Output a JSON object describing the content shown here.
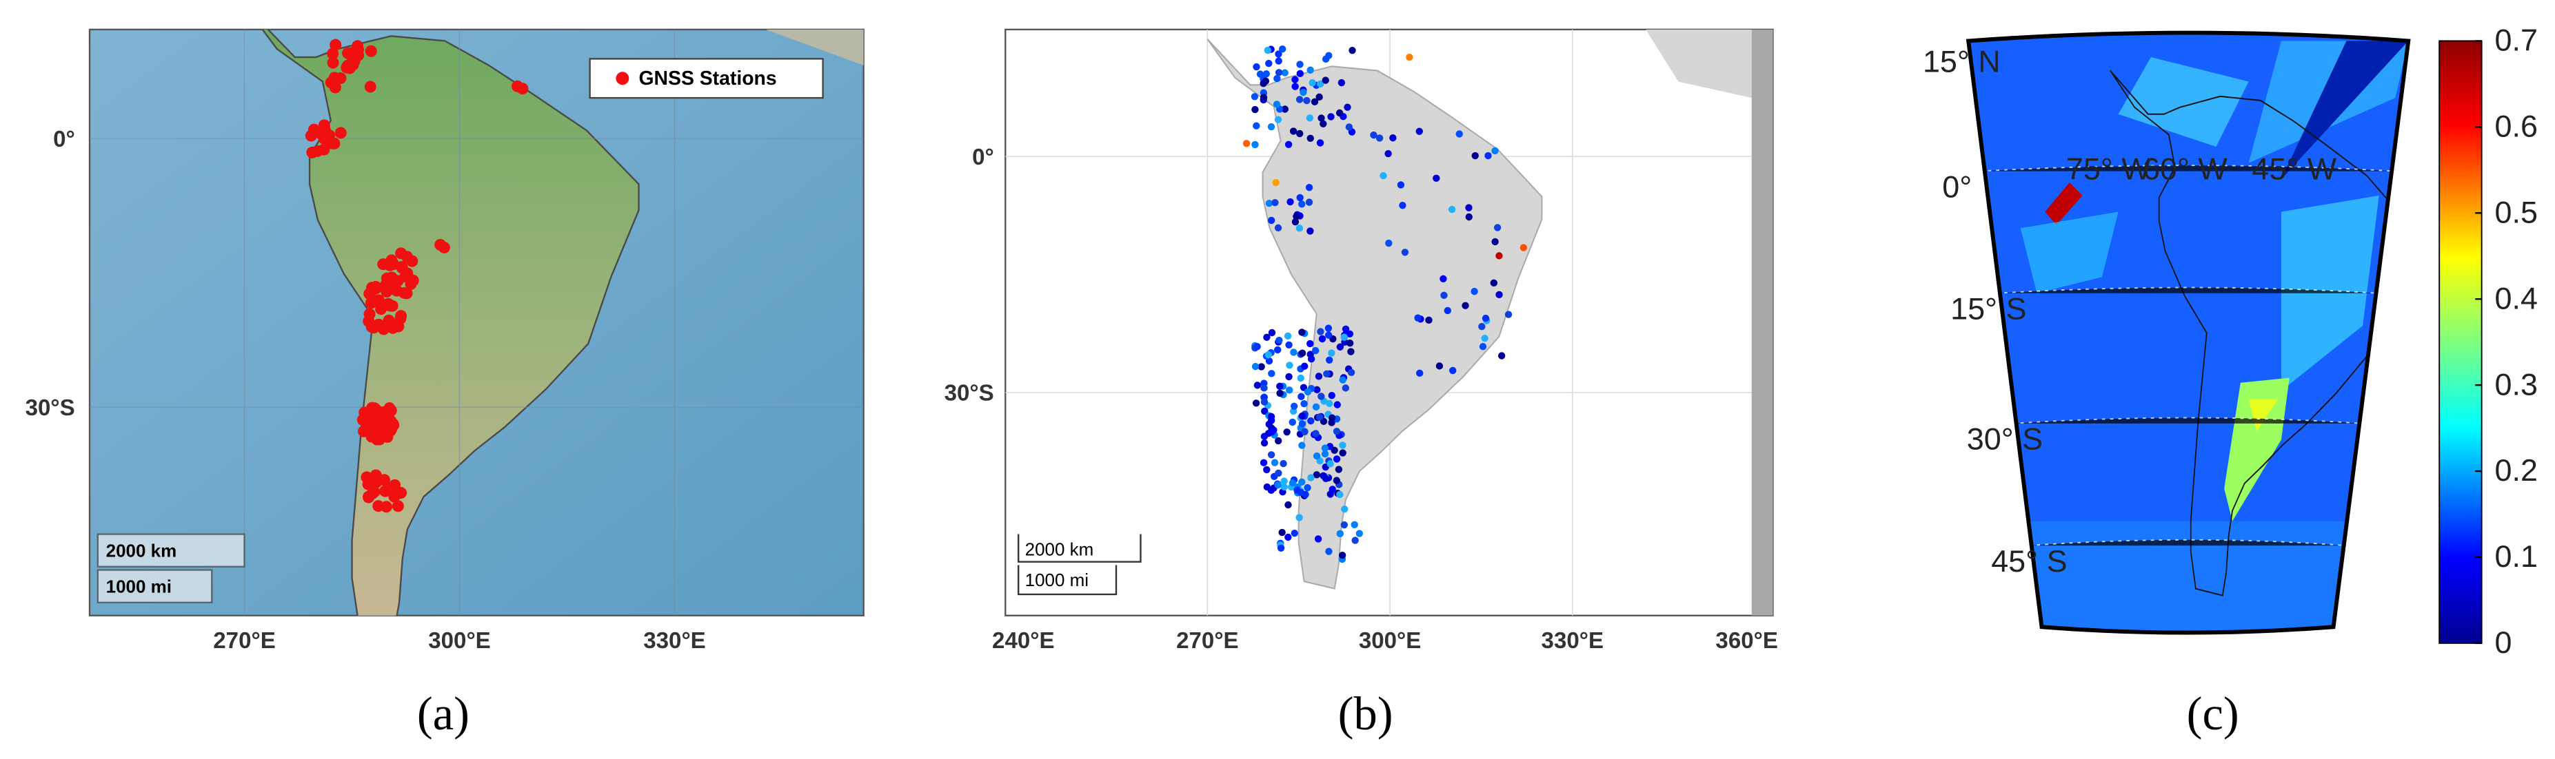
{
  "panels": [
    {
      "label": "(a)",
      "yticks": [
        "0°",
        "30°S"
      ],
      "xticks": [
        "270°E",
        "300°E",
        "330°E"
      ],
      "legend": "GNSS Stations",
      "scalebar": [
        "2000 km",
        "1000 mi"
      ]
    },
    {
      "label": "(b)",
      "yticks": [
        "0°",
        "30°S"
      ],
      "xticks": [
        "240°E",
        "270°E",
        "300°E",
        "330°E",
        "360°E"
      ],
      "scalebar": [
        "2000 km",
        "1000 mi"
      ]
    },
    {
      "label": "(c)",
      "lat_labels": [
        "15° N",
        "0°",
        "15° S",
        "30° S",
        "45° S"
      ],
      "lon_labels": [
        "75° W",
        "60° W",
        "45° W"
      ],
      "colorbar": {
        "lim": [
          0,
          0.7
        ],
        "ticks": [
          0,
          0.1,
          0.2,
          0.3,
          0.4,
          0.5,
          0.6,
          0.7
        ]
      }
    }
  ]
}
